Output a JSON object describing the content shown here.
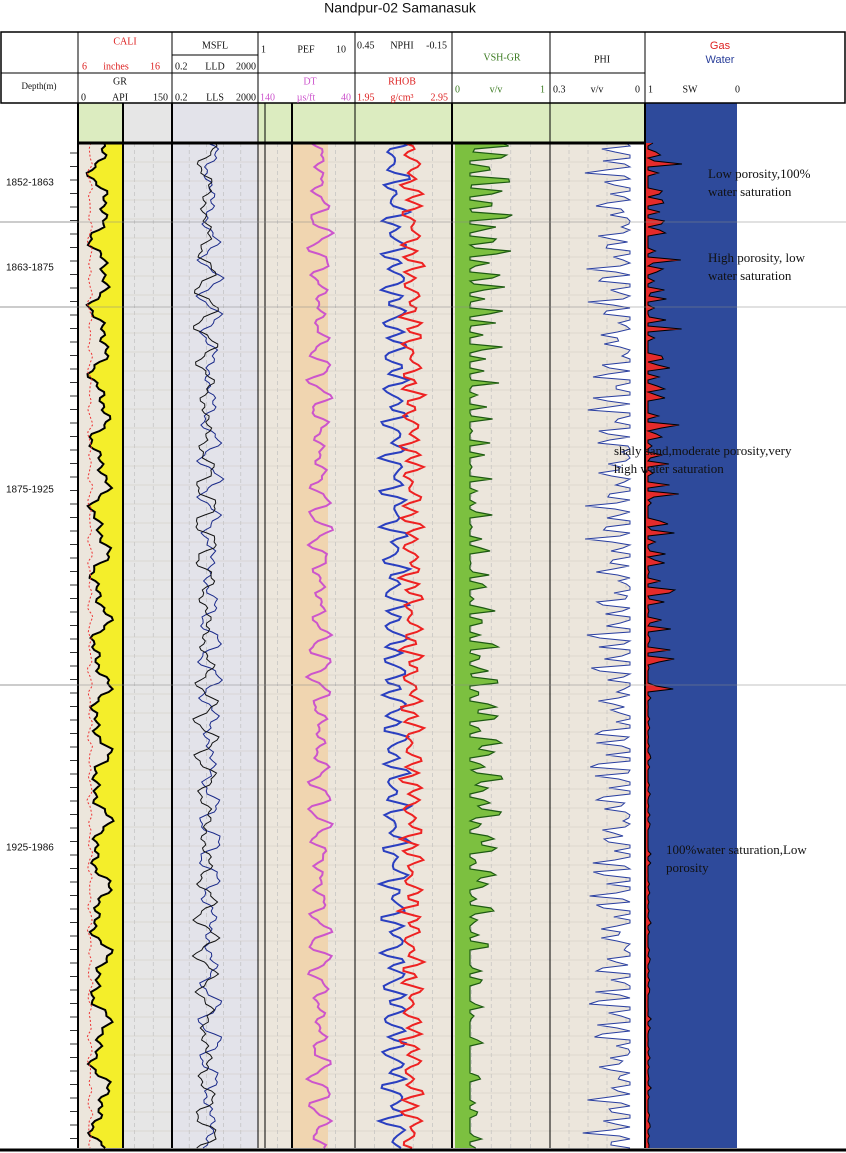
{
  "title": "Nandpur-02 Samanasuk",
  "header": {
    "depth": "Depth(m)",
    "cali": {
      "name": "CALI",
      "min": "6",
      "unit": "inches",
      "max": "16"
    },
    "gr": {
      "name": "GR",
      "min": "0",
      "unit": "API",
      "max": "150"
    },
    "msfl": {
      "name": "MSFL"
    },
    "lld": {
      "min": "0.2",
      "name": "LLD",
      "max": "2000"
    },
    "lls": {
      "min": "0.2",
      "name": "LLS",
      "max": "2000"
    },
    "pef": {
      "min": "1",
      "name": "PEF",
      "max": "10"
    },
    "dt": {
      "name": "DT",
      "min": "140",
      "unit": "µs/ft",
      "max": "40"
    },
    "nphi": {
      "min": "0.45",
      "name": "NPHI",
      "max": "-0.15"
    },
    "rhob": {
      "name": "RHOB",
      "min": "1.95",
      "unit": "g/cm³",
      "max": "2.95"
    },
    "vsh": {
      "name": "VSH-GR",
      "min": "0",
      "unit": "v/v",
      "max": "1"
    },
    "phi": {
      "name": "PHI",
      "min": "0.3",
      "unit": "v/v",
      "max": "0"
    },
    "sw": {
      "gas": "Gas",
      "water": "Water",
      "min": "1",
      "name": "SW",
      "max": "0"
    }
  },
  "depth_intervals": [
    "1852-1863",
    "1863-1875",
    "1875-1925",
    "1925-1986"
  ],
  "annotations": [
    [
      "Low porosity,100%",
      "water saturation"
    ],
    [
      "High porosity, low",
      "water saturation"
    ],
    [
      "shaly sand,moderate porosity,very",
      "high water saturation"
    ],
    [
      "100%water saturation,Low",
      "porosity"
    ]
  ]
}
